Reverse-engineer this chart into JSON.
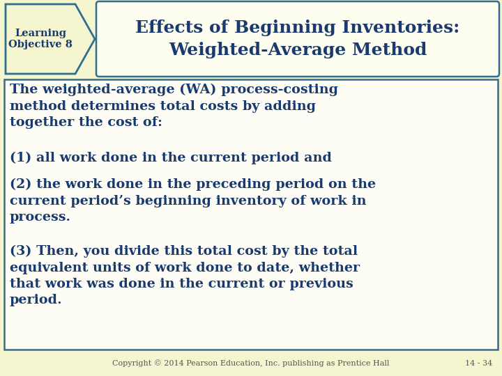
{
  "bg_color": "#f5f5d0",
  "title_box_bg": "#fdfdf0",
  "title_box_border": "#2e6e8e",
  "title_text_line1": "Effects of Beginning Inventories:",
  "title_text_line2": "Weighted-Average Method",
  "title_color": "#1a3a6e",
  "lo_text": "Learning\nObjective 8",
  "lo_color": "#1a3a6e",
  "arrow_color": "#f5f5d0",
  "arrow_border": "#2e6e8e",
  "content_border": "#2e6e8e",
  "content_bg": "#fdfdf5",
  "content_text_color": "#1a3a6e",
  "para1": "The weighted-average (WA) process-costing\nmethod determines total costs by adding\ntogether the cost of:",
  "para2": "(1) all work done in the current period and",
  "para3": "(2) the work done in the preceding period on the\ncurrent period’s beginning inventory of work in\nprocess.",
  "para4": "(3) Then, you divide this total cost by the total\nequivalent units of work done to date, whether\nthat work was done in the current or previous\nperiod.",
  "footer_text": "Copyright © 2014 Pearson Education, Inc. publishing as Prentice Hall",
  "footer_right": "14 - 34",
  "footer_color": "#555555"
}
